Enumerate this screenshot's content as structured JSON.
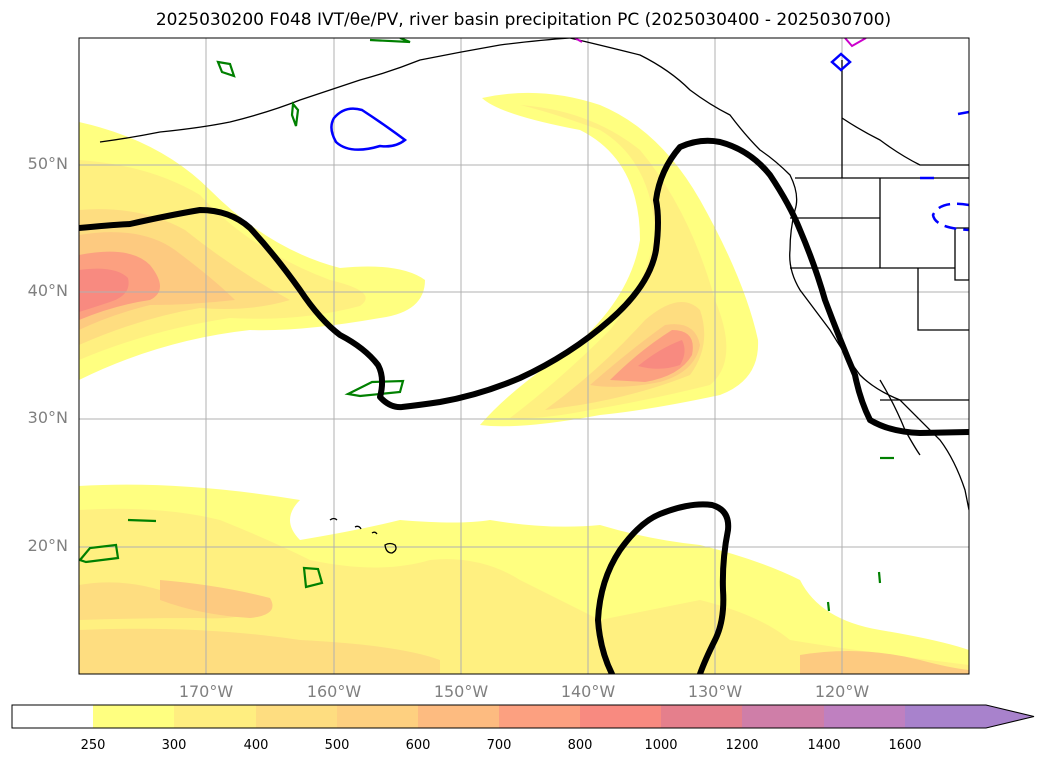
{
  "title": "2025030200 F048 IVT/θe/PV, river basin precipitation PC (2025030400 - 2025030700)",
  "map": {
    "extent": {
      "lon_min": -180,
      "lon_max": -110,
      "lat_min": 10,
      "lat_max": 60
    },
    "lat_labels": [
      "50°N",
      "40°N",
      "30°N",
      "20°N"
    ],
    "lon_labels": [
      "170°W",
      "160°W",
      "150°W",
      "140°W",
      "130°W",
      "120°W"
    ],
    "grid": true
  },
  "colorbar": {
    "levels": [
      "250",
      "300",
      "400",
      "500",
      "600",
      "700",
      "800",
      "1000",
      "1200",
      "1400",
      "1600"
    ],
    "colors": [
      "#ffffff",
      "#ffff80",
      "#ffee80",
      "#fedd80",
      "#fed080",
      "#fdbb80",
      "#fca080",
      "#f88a80",
      "#e57f8c",
      "#cf7ea8",
      "#bf80c0",
      "#a882cc"
    ],
    "extend": "max"
  },
  "colors": {
    "thick_contour": "#000000",
    "pv_contour": "#008000",
    "theta_contour": "#0000ff",
    "magenta_contour": "#cc00cc",
    "grid": "#b0b0b0",
    "axis_label": "#808080"
  }
}
